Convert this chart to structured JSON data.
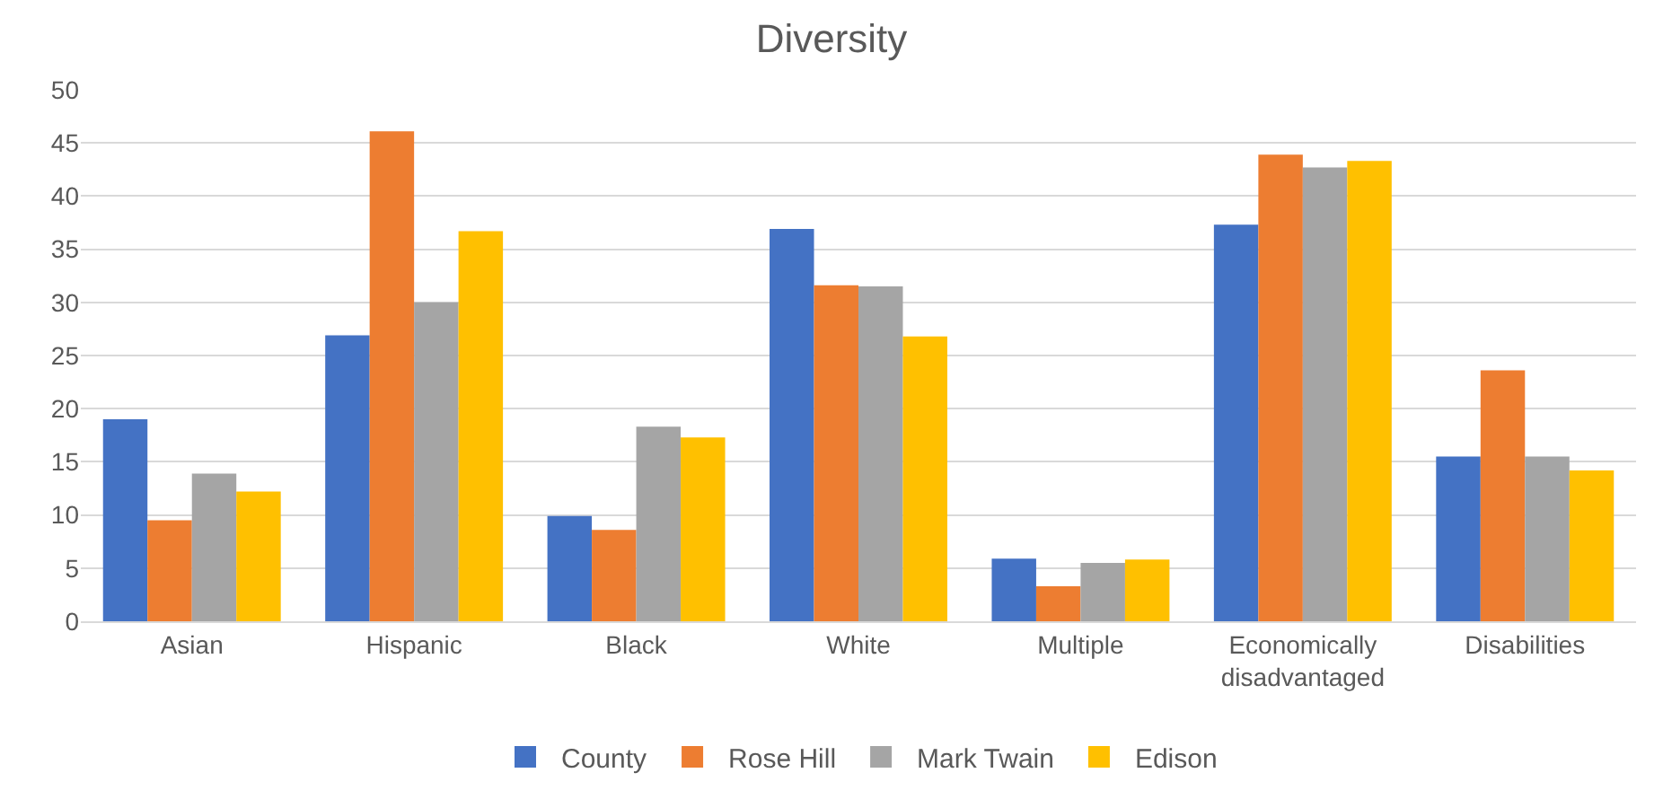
{
  "chart_data": {
    "type": "bar",
    "title": "Diversity",
    "categories": [
      "Asian",
      "Hispanic",
      "Black",
      "White",
      "Multiple",
      "Economically disadvantaged",
      "Disabilities"
    ],
    "series": [
      {
        "name": "County",
        "color": "#4472c4",
        "values": [
          19,
          26.9,
          9.9,
          36.9,
          5.9,
          37.3,
          15.5
        ]
      },
      {
        "name": "Rose Hill",
        "color": "#ed7d31",
        "values": [
          9.5,
          46.1,
          8.6,
          31.6,
          3.3,
          43.9,
          23.6
        ]
      },
      {
        "name": "Mark Twain",
        "color": "#a5a5a5",
        "values": [
          13.9,
          30,
          18.3,
          31.5,
          5.5,
          42.7,
          15.5
        ]
      },
      {
        "name": "Edison",
        "color": "#ffc000",
        "values": [
          12.2,
          36.7,
          17.3,
          26.8,
          5.8,
          43.3,
          14.2
        ]
      }
    ],
    "ylim": [
      0,
      50
    ],
    "yticks": [
      0,
      5,
      10,
      15,
      20,
      25,
      30,
      35,
      40,
      45,
      50
    ],
    "grid": "y",
    "legend": "bottom"
  }
}
